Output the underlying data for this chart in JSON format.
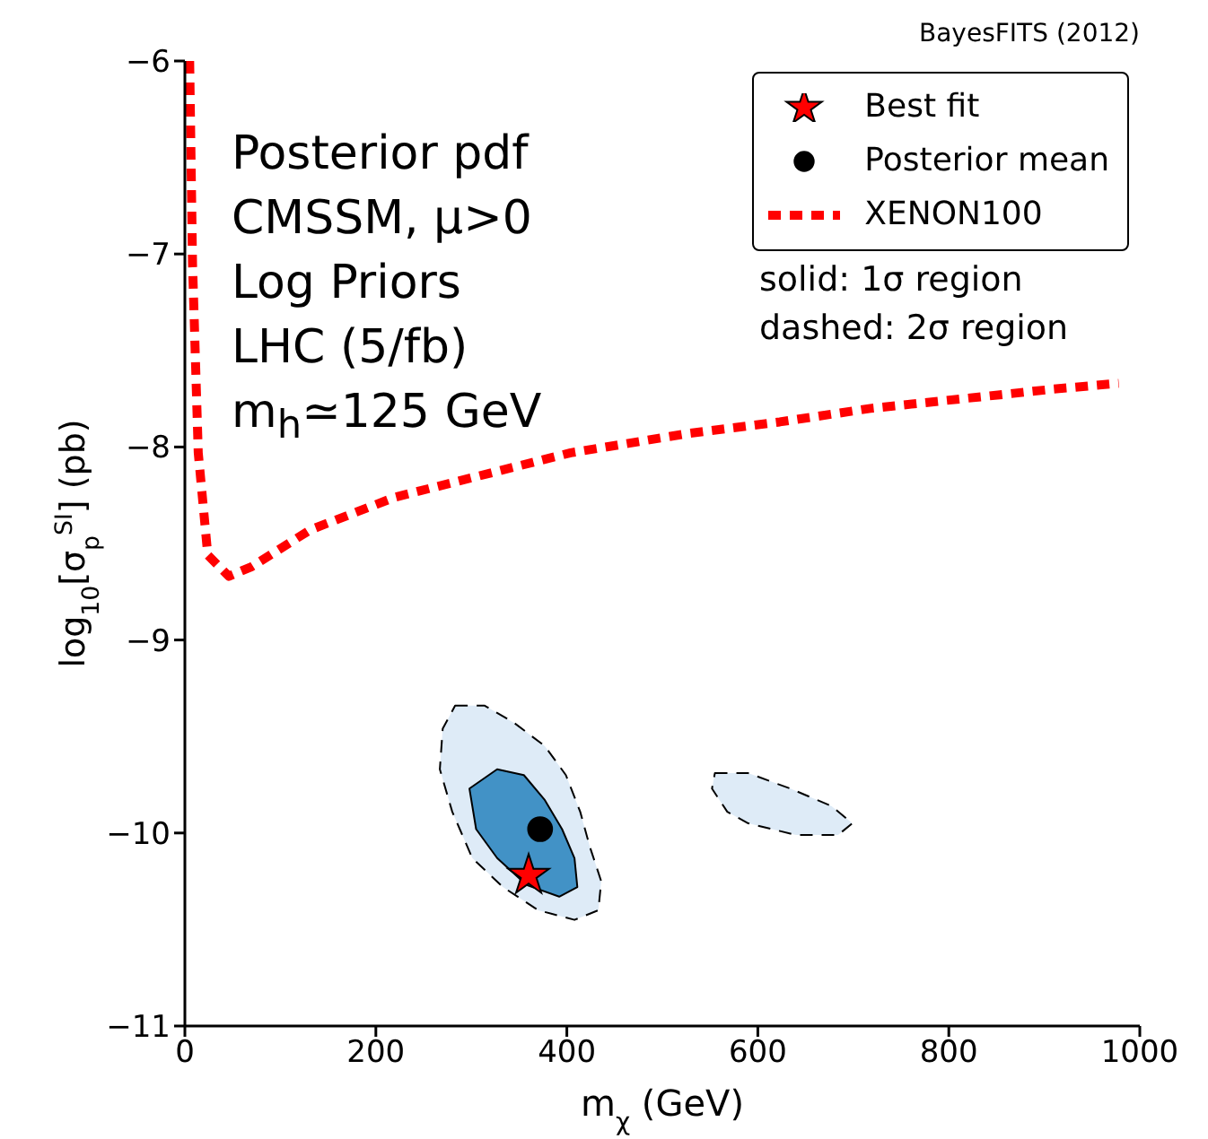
{
  "chart_data": {
    "type": "area",
    "xlabel": "m$_{χ}$ (GeV)",
    "ylabel": "log$_{10}$[σ$_{p}$$^{SI}$] (pb)",
    "xlim": [
      0,
      1000
    ],
    "xticks": [
      0,
      200,
      400,
      600,
      800,
      1000
    ],
    "ylim": [
      -11,
      -6
    ],
    "yticks": [
      -11,
      -10,
      -9,
      -8,
      -7,
      -6
    ],
    "legend": "top right",
    "annotations": [
      "BayesFITS (2012)",
      "Posterior pdf",
      "CMSSM, μ>0",
      "Log Priors",
      "LHC (5/fb)",
      "m$_{h}$≃125 GeV",
      "solid: 1σ region",
      "dashed: 2σ region"
    ],
    "series": [
      {
        "color": "#deebf7",
        "line_style": "dashed",
        "x": [
          283,
          314,
          345,
          377,
          399,
          414,
          424,
          436,
          433,
          408,
          370,
          333,
          301,
          280,
          267,
          270
        ],
        "values": [
          -9.34,
          -9.34,
          -9.43,
          -9.55,
          -9.7,
          -9.89,
          -10.07,
          -10.25,
          -10.4,
          -10.45,
          -10.4,
          -10.28,
          -10.13,
          -9.89,
          -9.67,
          -9.46
        ]
      },
      {
        "color": "#deebf7",
        "line_style": "dashed",
        "x": [
          555,
          590,
          634,
          677,
          699,
          684,
          640,
          590,
          568,
          552
        ],
        "values": [
          -9.69,
          -9.69,
          -9.77,
          -9.86,
          -9.95,
          -10.01,
          -10.01,
          -9.95,
          -9.89,
          -9.77
        ]
      },
      {
        "color": "#4292c6",
        "line_style": "solid",
        "x": [
          298,
          327,
          355,
          377,
          395,
          408,
          411,
          392,
          358,
          327,
          305
        ],
        "values": [
          -9.77,
          -9.67,
          -9.7,
          -9.83,
          -9.98,
          -10.13,
          -10.28,
          -10.33,
          -10.27,
          -10.13,
          -9.98
        ]
      },
      {
        "type": "line",
        "name": "XENON100",
        "color": "#ff0000",
        "line_style": "dashed",
        "x": [
          5,
          8,
          14,
          24,
          46,
          70,
          131,
          220,
          308,
          404,
          527,
          623,
          718,
          814,
          910,
          978
        ],
        "values": [
          -6,
          -7.05,
          -8.03,
          -8.56,
          -8.67,
          -8.62,
          -8.43,
          -8.26,
          -8.15,
          -8.03,
          -7.93,
          -7.87,
          -7.8,
          -7.75,
          -7.7,
          -7.67
        ]
      },
      {
        "type": "scatter",
        "name": "Posterior mean",
        "color": "#000000",
        "marker": "circle",
        "x": [
          372
        ],
        "values": [
          -9.98
        ]
      },
      {
        "type": "scatter",
        "name": "Best fit",
        "color": "#ff0000",
        "marker": "star",
        "x": [
          360
        ],
        "values": [
          -10.22
        ]
      }
    ]
  }
}
